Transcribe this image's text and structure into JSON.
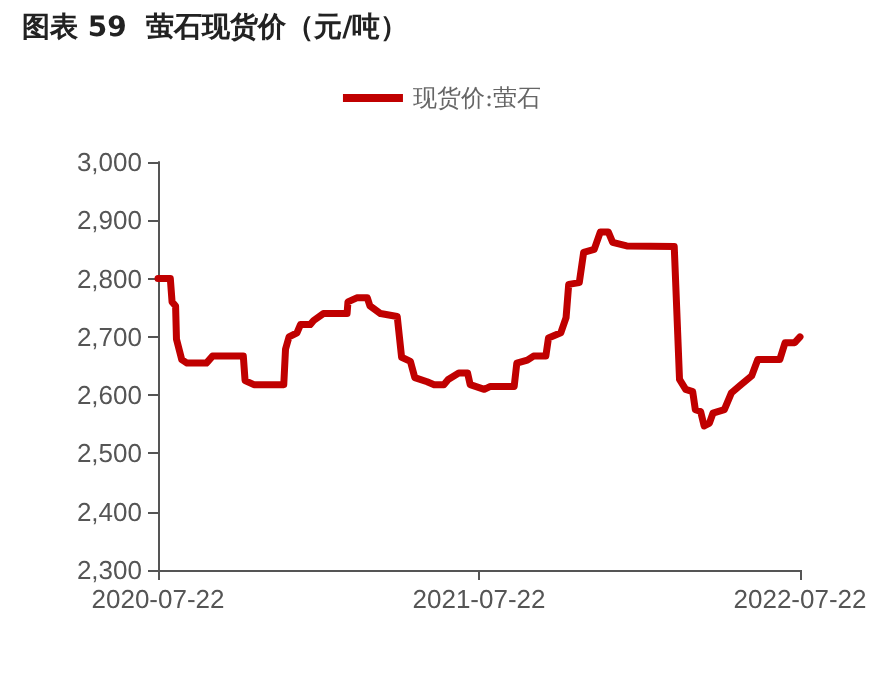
{
  "chart_data": {
    "type": "line",
    "title": "图表 59  萤石现货价（元/吨）",
    "legend": "top",
    "x": [
      "2020-07-22",
      "2020-08-05",
      "2020-08-07",
      "2020-08-11",
      "2020-08-12",
      "2020-08-18",
      "2020-08-24",
      "2020-09-15",
      "2020-09-22",
      "2020-10-27",
      "2020-10-29",
      "2020-11-08",
      "2020-12-12",
      "2020-12-14",
      "2020-12-18",
      "2020-12-27",
      "2020-12-31",
      "2021-01-11",
      "2021-01-15",
      "2021-01-26",
      "2021-02-22",
      "2021-02-23",
      "2021-03-05",
      "2021-03-17",
      "2021-03-20",
      "2021-04-01",
      "2021-04-20",
      "2021-04-25",
      "2021-05-05",
      "2021-05-10",
      "2021-05-24",
      "2021-06-01",
      "2021-06-12",
      "2021-06-17",
      "2021-06-29",
      "2021-07-09",
      "2021-07-12",
      "2021-07-28",
      "2021-08-04",
      "2021-08-31",
      "2021-09-03",
      "2021-09-15",
      "2021-09-22",
      "2021-10-06",
      "2021-10-09",
      "2021-10-23",
      "2021-10-29",
      "2021-11-01",
      "2021-11-13",
      "2021-11-18",
      "2021-11-30",
      "2021-12-07",
      "2021-12-16",
      "2021-12-21",
      "2022-01-06",
      "2022-03-01",
      "2022-03-07",
      "2022-03-14",
      "2022-03-22",
      "2022-03-25",
      "2022-03-31",
      "2022-04-04",
      "2022-04-10",
      "2022-04-14",
      "2022-04-27",
      "2022-05-05",
      "2022-05-16",
      "2022-05-28",
      "2022-06-04",
      "2022-06-29",
      "2022-07-05",
      "2022-07-16",
      "2022-07-22"
    ],
    "series": [
      {
        "name": "现货价:萤石",
        "color": "#c00000",
        "values": [
          2800,
          2800,
          2760,
          2753,
          2696,
          2661,
          2655,
          2655,
          2667,
          2667,
          2625,
          2618,
          2618,
          2679,
          2700,
          2707,
          2721,
          2721,
          2728,
          2740,
          2740,
          2760,
          2767,
          2767,
          2753,
          2740,
          2735,
          2665,
          2658,
          2630,
          2623,
          2618,
          2618,
          2627,
          2638,
          2638,
          2618,
          2610,
          2615,
          2615,
          2655,
          2660,
          2667,
          2667,
          2698,
          2707,
          2733,
          2790,
          2793,
          2845,
          2850,
          2880,
          2880,
          2862,
          2856,
          2855,
          2627,
          2610,
          2606,
          2575,
          2572,
          2547,
          2552,
          2569,
          2575,
          2604,
          2618,
          2633,
          2661,
          2661,
          2690,
          2690,
          2700
        ]
      }
    ],
    "xlim": [
      "2020-07-22",
      "2022-07-22"
    ],
    "xticks": [
      "2020-07-22",
      "2021-07-22",
      "2022-07-22"
    ],
    "ylim": [
      2300,
      3000
    ],
    "yticks": [
      {
        "value": 2300,
        "label": "2,300"
      },
      {
        "value": 2400,
        "label": "2,400"
      },
      {
        "value": 2500,
        "label": "2,500"
      },
      {
        "value": 2600,
        "label": "2,600"
      },
      {
        "value": 2700,
        "label": "2,700"
      },
      {
        "value": 2800,
        "label": "2,800"
      },
      {
        "value": 2900,
        "label": "2,900"
      },
      {
        "value": 3000,
        "label": "3,000"
      }
    ],
    "grid": false,
    "marker": "none",
    "line_style": "solid"
  }
}
